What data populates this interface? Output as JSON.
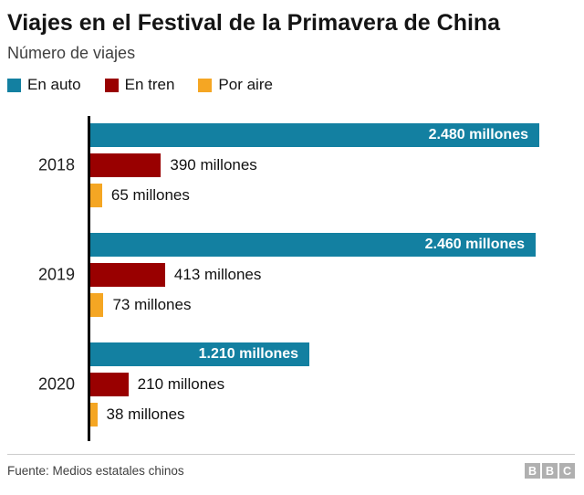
{
  "header": {
    "title": "Viajes en el Festival de la Primavera de China",
    "subtitle": "Número de viajes"
  },
  "legend": [
    {
      "label": "En auto",
      "color": "#1380A1"
    },
    {
      "label": "En tren",
      "color": "#990000"
    },
    {
      "label": "Por aire",
      "color": "#F5A623"
    }
  ],
  "chart_data": {
    "type": "bar",
    "orientation": "horizontal",
    "title": "Viajes en el Festival de la Primavera de China",
    "subtitle": "Número de viajes",
    "categories": [
      "2018",
      "2019",
      "2020"
    ],
    "series": [
      {
        "name": "En auto",
        "color": "#1380A1",
        "values": [
          2480,
          2460,
          1210
        ],
        "labels": [
          "2.480 millones",
          "2.460 millones",
          "1.210 millones"
        ],
        "label_position": "inside"
      },
      {
        "name": "En tren",
        "color": "#990000",
        "values": [
          390,
          413,
          210
        ],
        "labels": [
          "390 millones",
          "413 millones",
          "210 millones"
        ],
        "label_position": "outside"
      },
      {
        "name": "Por aire",
        "color": "#F5A623",
        "values": [
          65,
          73,
          38
        ],
        "labels": [
          "65 millones",
          "73 millones",
          "38 millones"
        ],
        "label_position": "outside"
      }
    ],
    "xmax": 2480,
    "unit": "millones",
    "legend_position": "top",
    "grid": false
  },
  "footer": {
    "source": "Fuente: Medios estatales chinos",
    "logo_blocks": [
      "B",
      "B",
      "C"
    ]
  }
}
